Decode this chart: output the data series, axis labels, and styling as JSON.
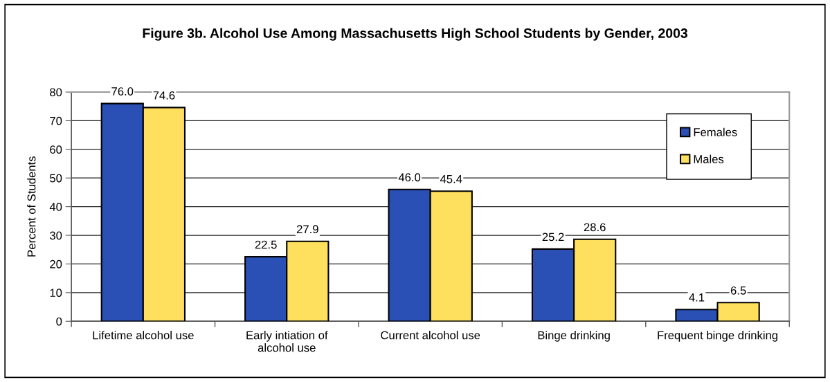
{
  "chart_data": {
    "type": "bar",
    "title": "Figure 3b. Alcohol Use Among Massachusetts High School Students by Gender, 2003",
    "ylabel": "Percent of Students",
    "categories": [
      "Lifetime alcohol use",
      "Early intiation of\nalcohol use",
      "Current alcohol use",
      "Binge drinking",
      "Frequent binge drinking"
    ],
    "series": [
      {
        "name": "Females",
        "color": "#2a4fb5",
        "values": [
          76.0,
          22.5,
          46.0,
          25.2,
          4.1
        ],
        "value_labels": [
          "76.0",
          "22.5",
          "46.0",
          "25.2",
          "4.1"
        ]
      },
      {
        "name": "Males",
        "color": "#ffdf5e",
        "values": [
          74.6,
          27.9,
          45.4,
          28.6,
          6.5
        ],
        "value_labels": [
          "74.6",
          "27.9",
          "45.4",
          "28.6",
          "6.5"
        ]
      }
    ],
    "ylim": [
      0,
      80
    ],
    "yticks": [
      0,
      10,
      20,
      30,
      40,
      50,
      60,
      70,
      80
    ],
    "grid": "y",
    "legend": "top right"
  }
}
